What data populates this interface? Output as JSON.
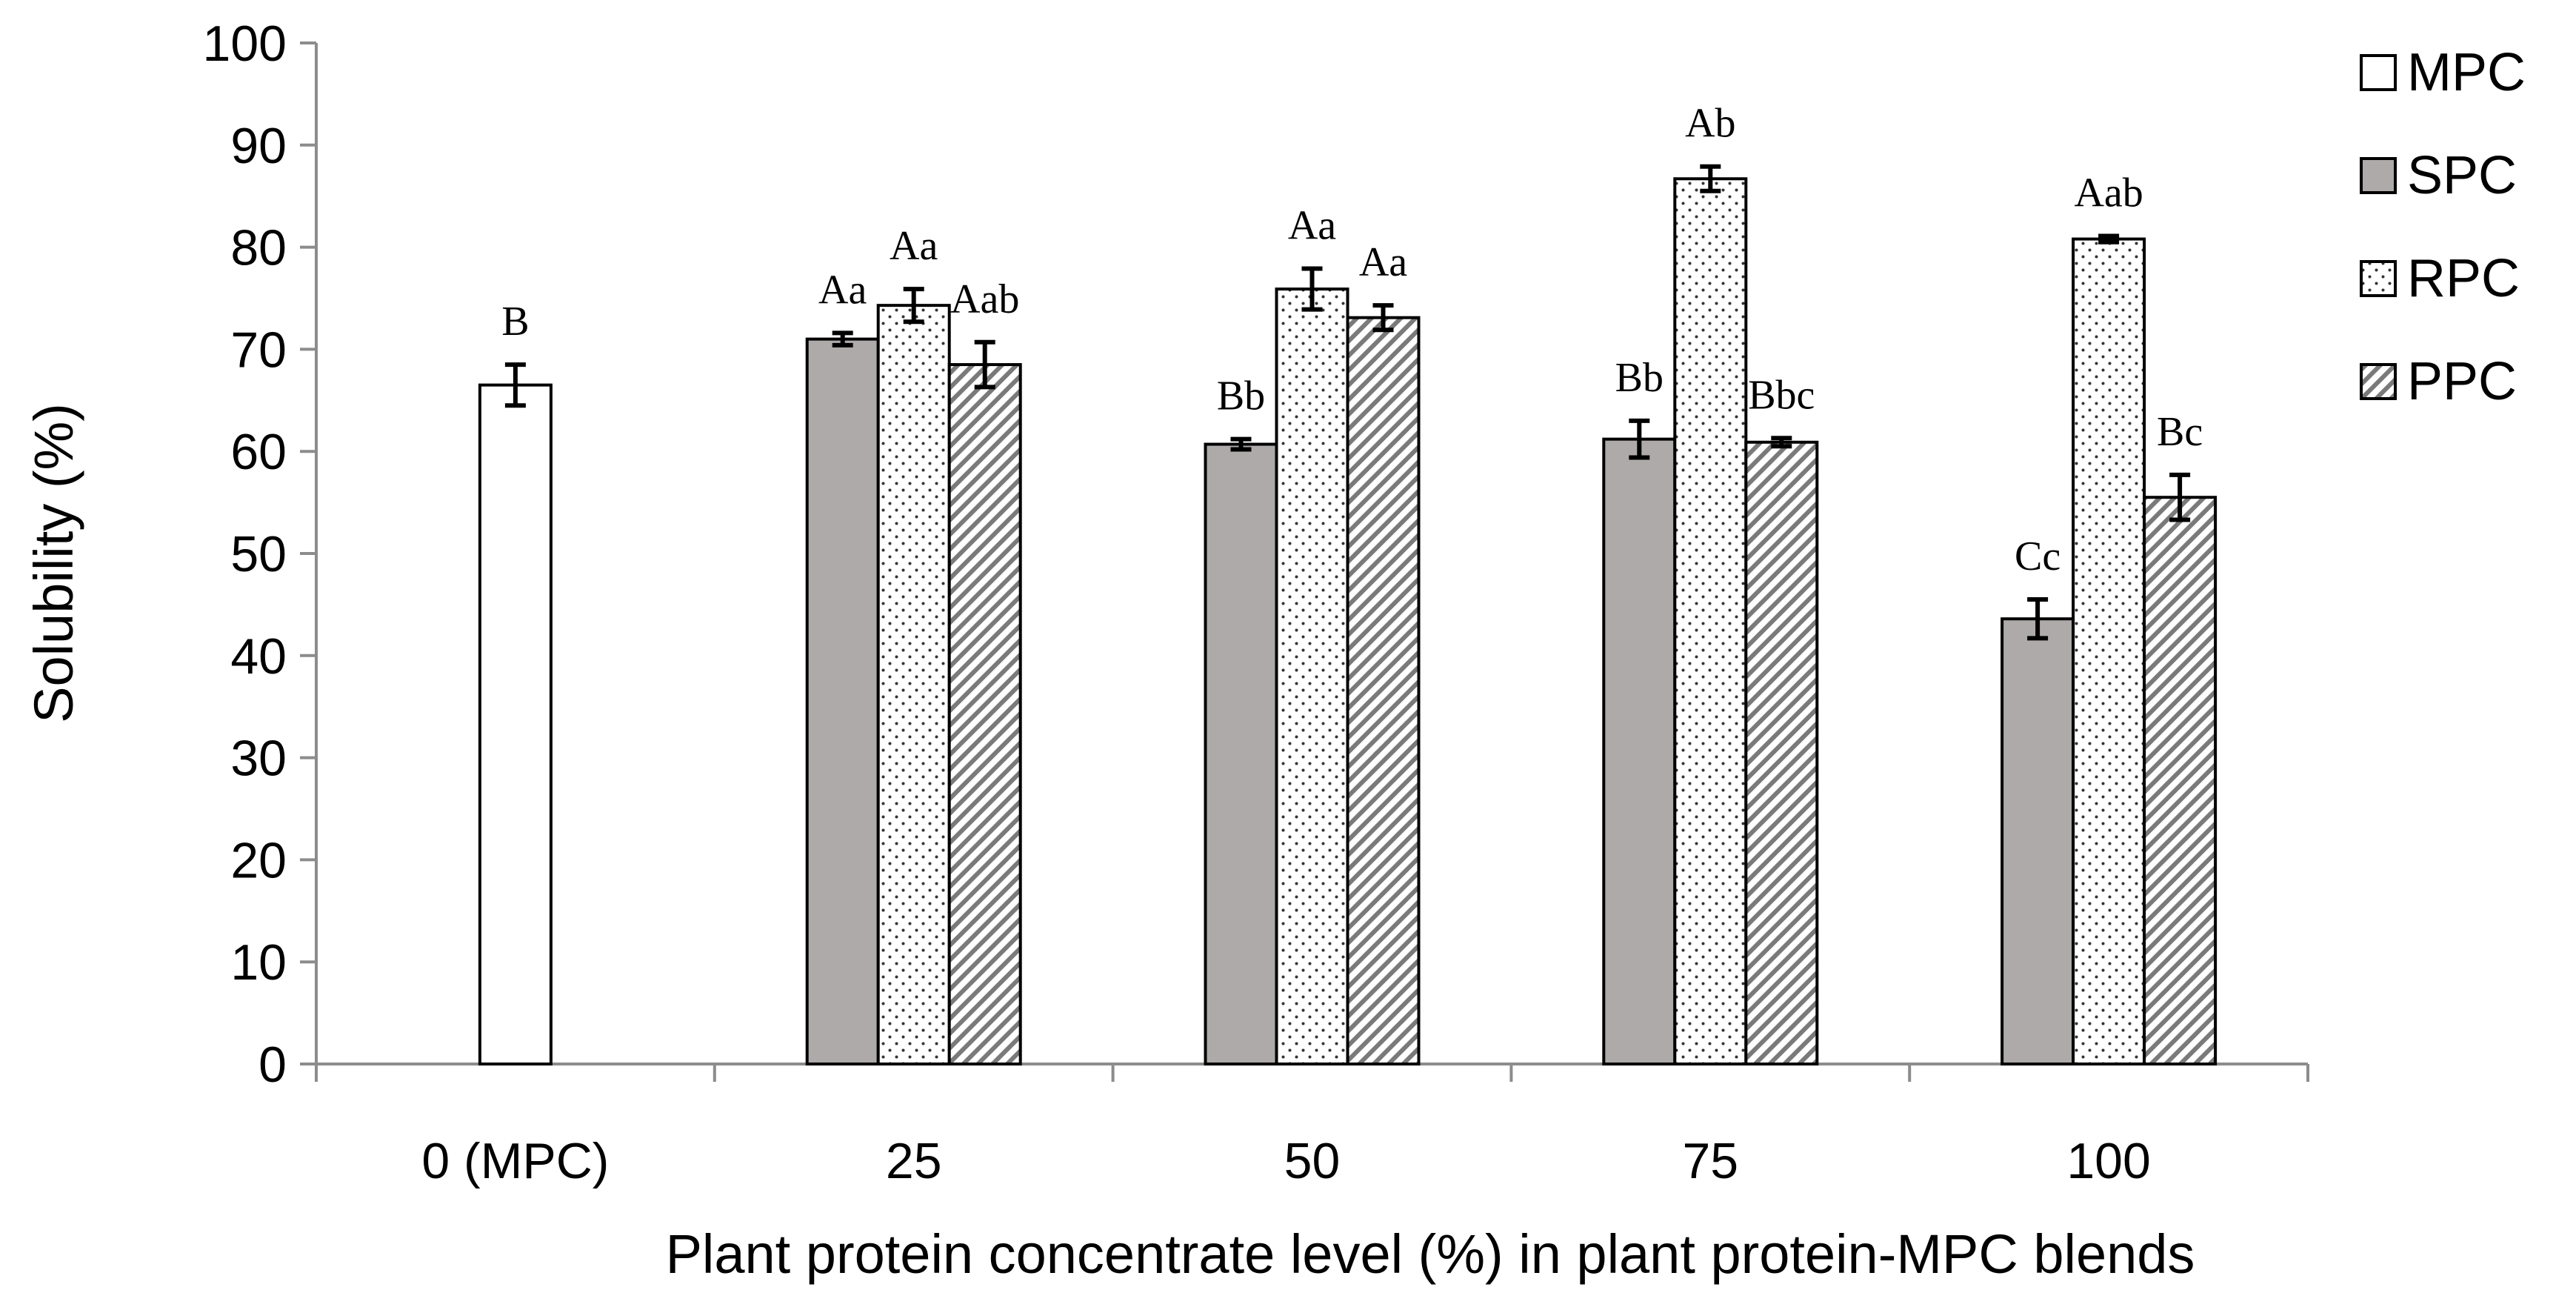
{
  "chart_data": {
    "type": "bar",
    "title": "",
    "xlabel": "Plant protein concentrate level (%) in plant protein-MPC blends",
    "ylabel": "Solubility (%)",
    "ylim": [
      0,
      100
    ],
    "yticks": [
      "0",
      "10",
      "20",
      "30",
      "40",
      "50",
      "60",
      "70",
      "80",
      "90",
      "100"
    ],
    "categories": [
      "0 (MPC)",
      "25",
      "50",
      "75",
      "100"
    ],
    "legend_position": "right",
    "grid": false,
    "series": [
      {
        "name": "MPC",
        "pattern": "white",
        "values": [
          66.5,
          null,
          null,
          null,
          null
        ],
        "errors": [
          2.0,
          null,
          null,
          null,
          null
        ],
        "labels": [
          "B",
          null,
          null,
          null,
          null
        ]
      },
      {
        "name": "SPC",
        "pattern": "gray",
        "values": [
          null,
          71.0,
          60.7,
          61.2,
          43.6
        ],
        "errors": [
          null,
          0.6,
          0.5,
          1.8,
          1.9
        ],
        "labels": [
          null,
          "Aa",
          "Bb",
          "Bb",
          "Cc"
        ]
      },
      {
        "name": "RPC",
        "pattern": "dots",
        "values": [
          null,
          74.3,
          75.9,
          86.7,
          80.8
        ],
        "errors": [
          null,
          1.6,
          2.0,
          1.2,
          0.3
        ],
        "labels": [
          null,
          "Aa",
          "Aa",
          "Ab",
          "Aab"
        ]
      },
      {
        "name": "PPC",
        "pattern": "hatch",
        "values": [
          null,
          68.5,
          73.1,
          60.9,
          55.5
        ],
        "errors": [
          null,
          2.2,
          1.2,
          0.4,
          2.2
        ],
        "labels": [
          null,
          "Aab",
          "Aa",
          "Bbc",
          "Bc"
        ]
      }
    ]
  }
}
